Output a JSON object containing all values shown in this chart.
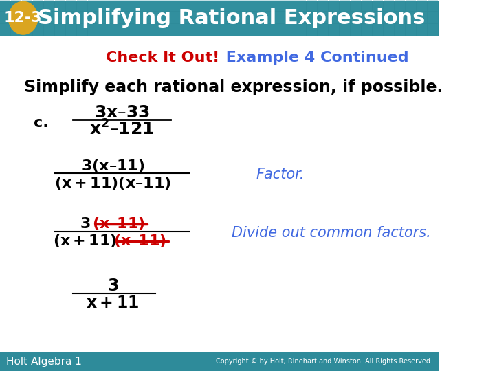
{
  "header_bg_color": "#2E8B9A",
  "header_text": "Simplifying Rational Expressions",
  "header_number": "12-3",
  "header_number_bg": "#DAA520",
  "header_text_color": "#FFFFFF",
  "subtitle_red": "Check It Out!",
  "subtitle_blue": " Example 4 Continued",
  "subtitle_red_color": "#CC0000",
  "subtitle_blue_color": "#4169E1",
  "body_text": "Simplify each rational expression, if possible.",
  "body_text_color": "#000000",
  "bg_color": "#FFFFFF",
  "footer_bg": "#2E8B9A",
  "footer_text": "Holt Algebra 1",
  "footer_text_color": "#FFFFFF",
  "factor_label": "Factor.",
  "divide_label": "Divide out common factors.",
  "annotation_color": "#4169E1",
  "strikethrough_color": "#CC0000",
  "math_color": "#000000",
  "c_label_color": "#000000"
}
